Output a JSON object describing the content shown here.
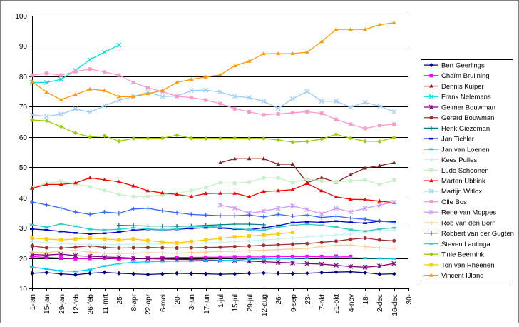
{
  "chart_data": {
    "type": "line",
    "title": "",
    "xlabel": "",
    "ylabel": "",
    "ylim": [
      10,
      100
    ],
    "y_ticks": [
      10,
      20,
      30,
      40,
      50,
      60,
      70,
      80,
      90,
      100
    ],
    "grid": "horizontal",
    "legend_position": "right",
    "x_tick_labels": [
      "1-jan",
      "15-jan",
      "29-jan",
      "12-feb",
      "26-feb",
      "11-mrt",
      "25-",
      "8-apr",
      "22-apr",
      "6-mei",
      "20-",
      "3-jun",
      "17-jun",
      "1-jul",
      "15-jul",
      "29-jul",
      "12-aug",
      "26-",
      "9-sep",
      "23-",
      "7-okt",
      "21-okt",
      "4-nov",
      "18-",
      "2-dec",
      "16-dec",
      "30-"
    ],
    "series": [
      {
        "name": "Bert Geerlings",
        "color": "#000080",
        "marker": "diamond",
        "start": 0,
        "values": [
          15,
          15.2,
          14.8,
          14.5,
          15,
          15.3,
          15,
          14.8,
          14.6,
          14.8,
          15,
          14.9,
          14.8,
          14.7,
          14.8,
          15,
          15.1,
          15,
          14.9,
          15,
          15.2,
          15.4,
          15.5,
          15.2,
          14.7,
          14.8
        ]
      },
      {
        "name": "Chaïm Bruijning",
        "color": "#ff00ff",
        "marker": "square",
        "start": 0,
        "values": [
          20.5,
          20.2,
          20,
          19.8,
          19.9,
          20,
          19.8,
          19.9,
          20,
          20.1,
          20.2,
          20.2,
          20.3,
          20.3,
          20.4,
          20.4,
          20.4,
          20.5,
          20.5,
          20.5,
          20.5,
          20.6,
          20.5
        ]
      },
      {
        "name": "Dennis Kuiper",
        "color": "#8b2020",
        "marker": "triangle",
        "start": 13,
        "values": [
          51.5,
          52.8,
          52.8,
          52.8,
          51,
          51,
          44.9,
          46.6,
          45,
          47.5,
          49.7,
          50.5,
          51.5
        ]
      },
      {
        "name": "Frank Nelemans",
        "color": "#00e0e0",
        "marker": "x",
        "start": 0,
        "values": [
          78,
          78,
          79,
          82,
          85.5,
          88,
          90.3
        ]
      },
      {
        "name": "Gelmer Bouwman",
        "color": "#800080",
        "marker": "star",
        "start": 0,
        "values": [
          21.2,
          21,
          21.3,
          20.8,
          20.6,
          20.4,
          20.2,
          20,
          19.8,
          19.7,
          19.6,
          19.5,
          19.4,
          19.3,
          19.2,
          19,
          18.8,
          18.6,
          18.4,
          18.2,
          18,
          17.6,
          17.2,
          17,
          17.4,
          18.2
        ]
      },
      {
        "name": "Gerard Bouwman",
        "color": "#9e3030",
        "marker": "circle",
        "start": 0,
        "values": [
          24,
          23.4,
          23.3,
          23.6,
          24.1,
          23.5,
          23.3,
          23.4,
          23.5,
          23.4,
          23.3,
          23.4,
          23.5,
          23.6,
          23.8,
          24,
          24.2,
          24.4,
          24.6,
          24.8,
          25.2,
          25.6,
          26.2,
          26.6,
          26,
          25.7
        ]
      },
      {
        "name": "Henk Giezeman",
        "color": "#008080",
        "marker": "plus",
        "start": 6,
        "values": [
          30.8,
          30.7,
          30.6,
          30.6,
          30.5,
          30.6,
          30.8,
          31,
          31.2,
          31.2,
          31
        ]
      },
      {
        "name": "Jan Tichler",
        "color": "#0000cd",
        "marker": "dash",
        "start": 0,
        "values": [
          29.6,
          29.3,
          28.8,
          28.3,
          28,
          28.2,
          28.6,
          29.2,
          29.5,
          29.3,
          29.5,
          29.8,
          30,
          29.9,
          29.6,
          29.4,
          30,
          30.7,
          31.7,
          32,
          31.8,
          32.2,
          31.8,
          31.5,
          32.2,
          32
        ]
      },
      {
        "name": "Jan van Loenen",
        "color": "#00ccff",
        "marker": "dash",
        "start": 0,
        "values": [
          17,
          16.4,
          15.8,
          15.6,
          16.2,
          17.4,
          18.2,
          18.6,
          18.8,
          18.9,
          19,
          19,
          19.1,
          19.2,
          19.4,
          19.6,
          19.7,
          19.8,
          19.9,
          20,
          20.1,
          20.2,
          20.1,
          20,
          19.9,
          19.8
        ]
      },
      {
        "name": "Kees Pulles",
        "color": "#c9f3f3",
        "marker": "diamond",
        "start": 0,
        "values": [
          25.4,
          25.2,
          24.8,
          24.6,
          24.5,
          24.4,
          24.5,
          24.6,
          24.6,
          24.7,
          24.8,
          24.9,
          25,
          25.2,
          25.4,
          25.7,
          26,
          26.3,
          26.6,
          27,
          27.3,
          27.6,
          28,
          28.6,
          29.1,
          29.2
        ]
      },
      {
        "name": "Ludo Schoonen",
        "color": "#c8f0c8",
        "marker": "square",
        "start": 0,
        "values": [
          43.3,
          44.8,
          45.3,
          44.5,
          43.5,
          42.3,
          41,
          40.3,
          40.3,
          40.8,
          41.3,
          42.3,
          43.3,
          44.9,
          44.7,
          45.1,
          46.5,
          46.5,
          44.9,
          46.1,
          45.5,
          45.2,
          45.5,
          45.8,
          44.3,
          45.7
        ]
      },
      {
        "name": "Marten Ubbink",
        "color": "#ff0000",
        "marker": "triangle",
        "start": 0,
        "values": [
          43,
          44.3,
          44.3,
          44.8,
          46.5,
          45.8,
          45.2,
          43.8,
          42.2,
          41.5,
          41,
          40.3,
          41.3,
          41.4,
          41.4,
          40.2,
          42,
          42.2,
          42.6,
          44.6,
          42.2,
          40.2,
          39.4,
          39.3,
          38.8,
          38.3
        ]
      },
      {
        "name": "Martijn Witlox",
        "color": "#99ccff",
        "marker": "x",
        "start": 0,
        "values": [
          67.3,
          66.8,
          67.5,
          69.2,
          68.2,
          70.3,
          72.1,
          73.3,
          74.8,
          73.3,
          73.5,
          75.3,
          75.5,
          74.8,
          73.4,
          73,
          71.8,
          69.4,
          72.6,
          75,
          71.8,
          71.8,
          69.8,
          71.4,
          70.2,
          68.3
        ]
      },
      {
        "name": "Olle Bos",
        "color": "#ff99cc",
        "marker": "square",
        "start": 0,
        "values": [
          80.4,
          81,
          80.4,
          81.6,
          82.4,
          81.4,
          80.4,
          78,
          76.2,
          75,
          73.4,
          73,
          72.2,
          71,
          69.3,
          68.3,
          67.3,
          67.6,
          68,
          68.3,
          67.8,
          65.8,
          64.2,
          62.8,
          63.8,
          64.2
        ]
      },
      {
        "name": "René van Moppes",
        "color": "#cc99ff",
        "marker": "star",
        "start": 13,
        "values": [
          37.5,
          36.5,
          34.8,
          35.5,
          36.4,
          37.2,
          36,
          34.6,
          36.4,
          35.2,
          36.4,
          37.5,
          38.5
        ]
      },
      {
        "name": "Rob van den Born",
        "color": "#ffcc99",
        "marker": "plus",
        "start": 0,
        "values": [
          22,
          21.8,
          22.3,
          22.5,
          22,
          21.6,
          21.5,
          21.6,
          21.8,
          21.7,
          21.6,
          21.8,
          22,
          22.2,
          22.3,
          22.4,
          22.6,
          22.8,
          23,
          23.2,
          23.8,
          24.2,
          24.3,
          23.8,
          23.4,
          23.2
        ]
      },
      {
        "name": "Robbert van der Gugten",
        "color": "#3366ff",
        "marker": "plus",
        "start": 0,
        "values": [
          38.5,
          37.6,
          36.5,
          35.2,
          34.4,
          35.2,
          34.8,
          36.2,
          36.4,
          35.6,
          35,
          34.4,
          34.2,
          34,
          34,
          34.2,
          33.6,
          34.4,
          33.8,
          34.2,
          33.4,
          33.8,
          33.2,
          32.8,
          32.2,
          31.8
        ]
      },
      {
        "name": "Steven Lantinga",
        "color": "#33cccc",
        "marker": "dash",
        "start": 0,
        "values": [
          31,
          30.2,
          31.3,
          30.5,
          29.5,
          29.3,
          29.5,
          30,
          29.6,
          29.4,
          29.6,
          30.2,
          30.5,
          30.2,
          29.8,
          29.4,
          29.2,
          30.2,
          30.8,
          31.2,
          30.8,
          30.2,
          29.4,
          28.9,
          29.6,
          30
        ]
      },
      {
        "name": "Tinie Beernink",
        "color": "#99cc00",
        "marker": "diamond",
        "start": 0,
        "values": [
          65.6,
          65.3,
          63.4,
          61.3,
          60,
          60.4,
          58.6,
          59.5,
          59.5,
          59.6,
          60.6,
          59.6,
          59.5,
          59.5,
          59.6,
          59.5,
          59.5,
          59,
          58.3,
          58.5,
          59.3,
          60.9,
          59.6,
          58.6,
          58.5,
          59.8
        ]
      },
      {
        "name": "Ton van Rheenen",
        "color": "#ffcc00",
        "marker": "square",
        "start": 0,
        "values": [
          26.6,
          26.3,
          26,
          26.3,
          26.6,
          26.3,
          26,
          26.3,
          25.8,
          25.3,
          25,
          25.5,
          26,
          26.5,
          27,
          27.3,
          27.6,
          28,
          28.5
        ]
      },
      {
        "name": "Vincent IJland",
        "color": "#ff9900",
        "marker": "triangle",
        "start": 0,
        "values": [
          78.3,
          74.8,
          72.3,
          74,
          75.8,
          75.3,
          73.3,
          73.3,
          74.3,
          75.3,
          78,
          79,
          79.8,
          80.5,
          83.5,
          85,
          87.5,
          87.5,
          87.5,
          88,
          91.5,
          95.5,
          95.5,
          95.5,
          97,
          97.7
        ]
      }
    ]
  }
}
